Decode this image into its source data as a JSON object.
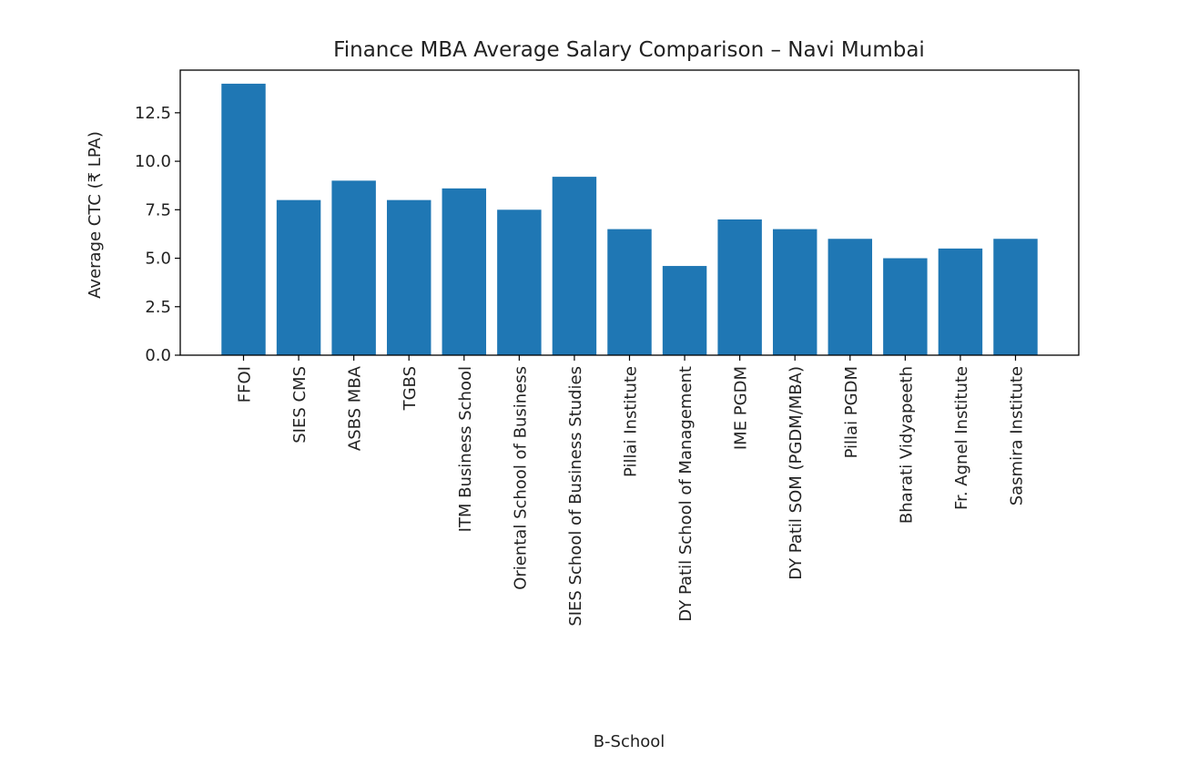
{
  "chart_data": {
    "type": "bar",
    "title": "Finance MBA Average Salary Comparison – Navi Mumbai",
    "xlabel": "B-School",
    "ylabel": "Average CTC (₹ LPA)",
    "ylim": [
      0,
      14.7
    ],
    "yticks": [
      "0.0",
      "2.5",
      "5.0",
      "7.5",
      "10.0",
      "12.5"
    ],
    "grid": false,
    "bar_color": "#1f77b4",
    "categories": [
      "FFOI",
      "SIES CMS",
      "ASBS MBA",
      "TGBS",
      "ITM Business School",
      "Oriental School of Business",
      "SIES School of Business Studies",
      "Pillai Institute",
      "DY Patil School of Management",
      "IME PGDM",
      "DY Patil SOM (PGDM/MBA)",
      "Pillai PGDM",
      "Bharati Vidyapeeth",
      "Fr. Agnel Institute",
      "Sasmira Institute"
    ],
    "values": [
      14,
      8,
      9,
      8,
      8.6,
      7.5,
      9.2,
      6.5,
      4.6,
      7,
      6.5,
      6,
      5,
      5.5,
      6
    ]
  }
}
